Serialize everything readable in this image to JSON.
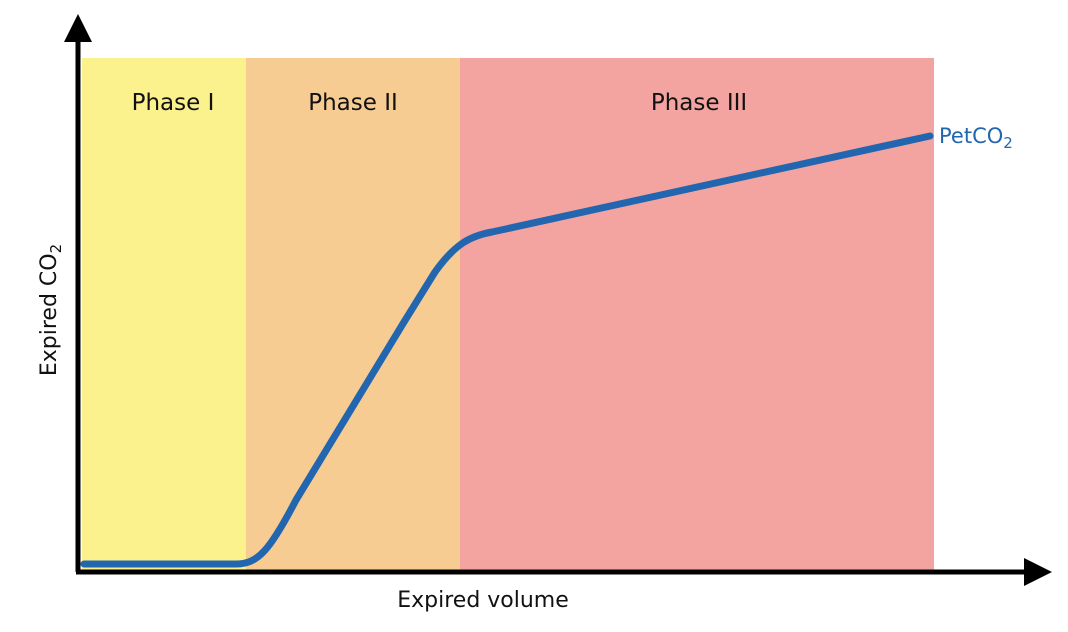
{
  "diagram": {
    "phases": [
      {
        "label": "Phase I",
        "color": "#fbf28d"
      },
      {
        "label": "Phase II",
        "color": "#f7cc93"
      },
      {
        "label": "Phase III",
        "color": "#f3a3a0"
      }
    ],
    "x_axis_label": "Expired volume",
    "y_axis": {
      "label_main": "Expired CO",
      "label_sub": "2"
    },
    "curve": {
      "label_main": "PetCO",
      "label_sub": "2",
      "color": "#2266b0"
    },
    "axis_color": "#000000"
  }
}
